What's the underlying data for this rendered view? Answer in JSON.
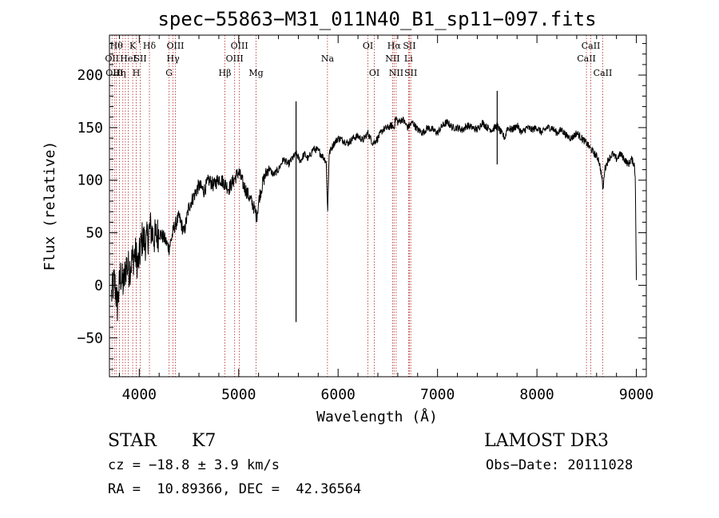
{
  "chart_data": {
    "type": "line",
    "title": "spec−55863−M31_011N40_B1_sp11−097.fits",
    "xlabel": "Wavelength (Å)",
    "ylabel": "Flux (relative)",
    "xlim": [
      3700,
      9100
    ],
    "ylim": [
      -87,
      238
    ],
    "xticks": [
      4000,
      5000,
      6000,
      7000,
      8000,
      9000
    ],
    "yticks": [
      -50,
      0,
      50,
      100,
      150,
      200
    ],
    "xtick_labels": [
      "4000",
      "5000",
      "6000",
      "7000",
      "8000",
      "9000"
    ],
    "ytick_labels": [
      "−50",
      "0",
      "50",
      "100",
      "150",
      "200"
    ],
    "line_color": "#000000",
    "marker_color": "#b22222",
    "series": [
      {
        "name": "flux",
        "x": [
          3720,
          3750,
          3780,
          3810,
          3840,
          3870,
          3900,
          3930,
          3960,
          3990,
          4030,
          4070,
          4110,
          4150,
          4200,
          4250,
          4300,
          4350,
          4400,
          4450,
          4500,
          4550,
          4600,
          4650,
          4700,
          4750,
          4800,
          4850,
          4900,
          4950,
          5000,
          5050,
          5100,
          5150,
          5180,
          5210,
          5250,
          5300,
          5350,
          5400,
          5450,
          5500,
          5550,
          5580,
          5620,
          5660,
          5700,
          5750,
          5800,
          5850,
          5880,
          5895,
          5910,
          5930,
          5960,
          6000,
          6050,
          6100,
          6150,
          6200,
          6250,
          6300,
          6350,
          6400,
          6450,
          6500,
          6540,
          6562,
          6580,
          6600,
          6650,
          6700,
          6750,
          6800,
          6850,
          6900,
          6950,
          7000,
          7050,
          7100,
          7150,
          7200,
          7250,
          7300,
          7350,
          7400,
          7450,
          7500,
          7550,
          7600,
          7640,
          7680,
          7700,
          7750,
          7800,
          7850,
          7900,
          7950,
          8000,
          8050,
          8100,
          8150,
          8200,
          8250,
          8300,
          8350,
          8400,
          8450,
          8500,
          8540,
          8580,
          8620,
          8650,
          8665,
          8680,
          8720,
          8760,
          8800,
          8840,
          8880,
          8920,
          8950,
          8980,
          8990,
          9000
        ],
        "y": [
          -10,
          5,
          -20,
          10,
          0,
          20,
          15,
          25,
          30,
          20,
          45,
          40,
          55,
          45,
          50,
          45,
          35,
          55,
          65,
          50,
          75,
          85,
          95,
          90,
          100,
          95,
          102,
          98,
          92,
          100,
          108,
          95,
          85,
          75,
          65,
          85,
          100,
          112,
          105,
          110,
          120,
          115,
          122,
          125,
          118,
          125,
          120,
          130,
          128,
          122,
          118,
          70,
          125,
          130,
          135,
          140,
          138,
          135,
          140,
          142,
          138,
          145,
          135,
          140,
          148,
          150,
          152,
          150,
          160,
          155,
          158,
          150,
          155,
          148,
          145,
          150,
          148,
          145,
          152,
          155,
          150,
          150,
          148,
          152,
          150,
          148,
          155,
          150,
          148,
          152,
          145,
          140,
          150,
          148,
          152,
          145,
          150,
          148,
          150,
          145,
          150,
          150,
          145,
          148,
          142,
          140,
          145,
          140,
          135,
          130,
          125,
          120,
          105,
          90,
          110,
          120,
          125,
          120,
          125,
          120,
          115,
          120,
          115,
          100,
          5
        ]
      }
    ],
    "spikes": [
      {
        "x": 5577,
        "y_min": -35,
        "y_max": 175
      },
      {
        "x": 7600,
        "y_min": 115,
        "y_max": 185
      }
    ],
    "line_markers": [
      {
        "x": 3726,
        "label": "OII",
        "row": 2
      },
      {
        "x": 3750,
        "label": "OIII",
        "row": 3
      },
      {
        "x": 3770,
        "label": "Hθ",
        "row": 1
      },
      {
        "x": 3800,
        "label": "Hη",
        "row": 3
      },
      {
        "x": 3835,
        "label": "",
        "row": 0
      },
      {
        "x": 3860,
        "label": "",
        "row": 0
      },
      {
        "x": 3889,
        "label": "HeI",
        "row": 2
      },
      {
        "x": 3934,
        "label": "K",
        "row": 1
      },
      {
        "x": 3970,
        "label": "H",
        "row": 3
      },
      {
        "x": 4010,
        "label": "SII",
        "row": 2
      },
      {
        "x": 4102,
        "label": "Hδ",
        "row": 1
      },
      {
        "x": 4300,
        "label": "G",
        "row": 3
      },
      {
        "x": 4340,
        "label": "Hγ",
        "row": 2
      },
      {
        "x": 4363,
        "label": "OIII",
        "row": 1
      },
      {
        "x": 4861,
        "label": "Hβ",
        "row": 3
      },
      {
        "x": 4959,
        "label": "OIII",
        "row": 2
      },
      {
        "x": 5007,
        "label": "OIII",
        "row": 1
      },
      {
        "x": 5175,
        "label": "Mg",
        "row": 3
      },
      {
        "x": 5893,
        "label": "Na",
        "row": 2
      },
      {
        "x": 6300,
        "label": "OI",
        "row": 1
      },
      {
        "x": 6364,
        "label": "OI",
        "row": 3
      },
      {
        "x": 6548,
        "label": "NII",
        "row": 2
      },
      {
        "x": 6563,
        "label": "Hα",
        "row": 1
      },
      {
        "x": 6584,
        "label": "NII",
        "row": 3
      },
      {
        "x": 6708,
        "label": "Li",
        "row": 2
      },
      {
        "x": 6717,
        "label": "SII",
        "row": 1
      },
      {
        "x": 6731,
        "label": "SII",
        "row": 3
      },
      {
        "x": 8498,
        "label": "CaII",
        "row": 2
      },
      {
        "x": 8542,
        "label": "CaII",
        "row": 1
      },
      {
        "x": 8662,
        "label": "CaII",
        "row": 3
      }
    ]
  },
  "info": {
    "class": "STAR",
    "subclass": "K7",
    "survey": "LAMOST DR3",
    "cz": "cz = −18.8 ± 3.9 km/s",
    "obs_date": "Obs−Date: 20111028",
    "coords": "RA =  10.89366, DEC =  42.36564"
  }
}
